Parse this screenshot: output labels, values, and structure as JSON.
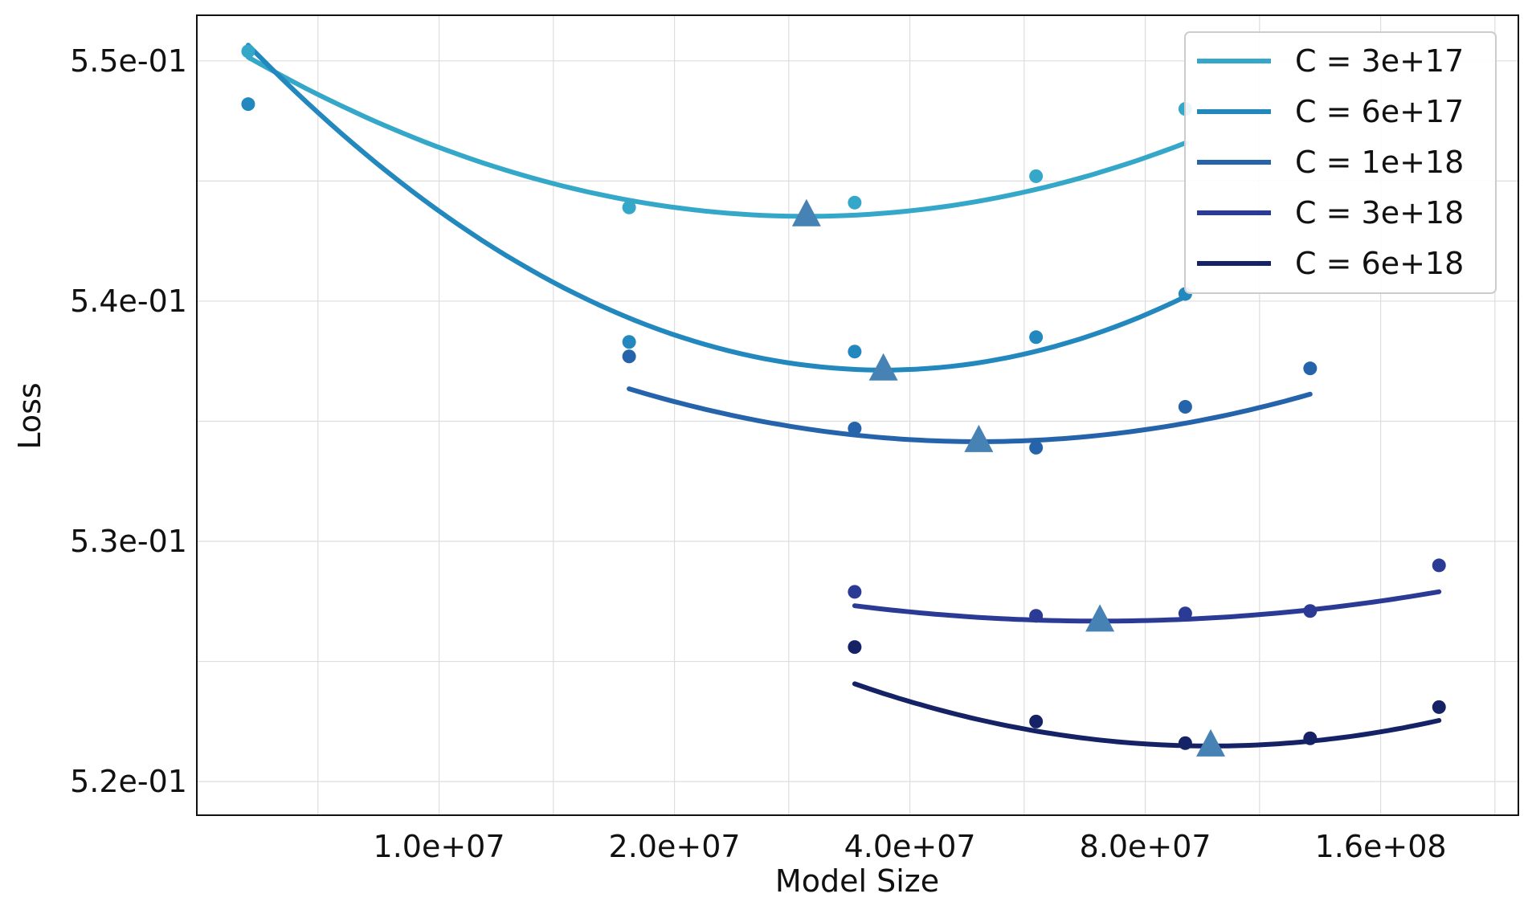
{
  "chart_data": {
    "type": "line",
    "title": "",
    "xlabel": "Model Size",
    "ylabel": "Loss",
    "xscale": "log",
    "xlim": [
      4900000,
      240000000
    ],
    "ylim": [
      0.5186,
      0.5519
    ],
    "grid": true,
    "legend_position": "top-right",
    "x_ticks": [
      {
        "value": 10000000,
        "label": "1.0e+07"
      },
      {
        "value": 20000000,
        "label": "2.0e+07"
      },
      {
        "value": 40000000,
        "label": "4.0e+07"
      },
      {
        "value": 80000000,
        "label": "8.0e+07"
      },
      {
        "value": 160000000,
        "label": "1.6e+08"
      }
    ],
    "x_minor_grid": [
      7000000,
      14000000,
      28000000,
      56000000,
      112000000,
      224000000
    ],
    "y_ticks": [
      {
        "value": 0.55,
        "label": "5.5e-01"
      },
      {
        "value": 0.54,
        "label": "5.4e-01"
      },
      {
        "value": 0.53,
        "label": "5.3e-01"
      },
      {
        "value": 0.52,
        "label": "5.2e-01"
      }
    ],
    "y_minor_grid": [
      0.545,
      0.535,
      0.525
    ],
    "series": [
      {
        "name": "C = 3e+17",
        "color": "#35a7c8",
        "points": [
          [
            5700000,
            0.5504
          ],
          [
            17500000,
            0.5439
          ],
          [
            34000000,
            0.5441
          ],
          [
            58000000,
            0.5452
          ],
          [
            90000000,
            0.548
          ]
        ],
        "fit": [
          5700000,
          90000000,
          0.54353,
          1.3
        ],
        "optimum": [
          29500000,
          0.54355
        ]
      },
      {
        "name": "C = 6e+17",
        "color": "#2288bd",
        "points": [
          [
            5700000,
            0.5482
          ],
          [
            17500000,
            0.5383
          ],
          [
            34000000,
            0.5379
          ],
          [
            58000000,
            0.5385
          ],
          [
            90000000,
            0.5403
          ]
        ],
        "fit": [
          5700000,
          90000000,
          0.53713,
          2.05
        ],
        "optimum": [
          37000000,
          0.53713
        ]
      },
      {
        "name": "C = 1e+18",
        "color": "#2563aa",
        "points": [
          [
            17500000,
            0.5377
          ],
          [
            34000000,
            0.5347
          ],
          [
            58000000,
            0.5339
          ],
          [
            90000000,
            0.5356
          ],
          [
            130000000,
            0.5372
          ]
        ],
        "fit": [
          17500000,
          130000000,
          0.53415,
          1.1
        ],
        "optimum": [
          49000000,
          0.53415
        ]
      },
      {
        "name": "C = 3e+18",
        "color": "#2b3a94",
        "points": [
          [
            34000000,
            0.5279
          ],
          [
            58000000,
            0.5269
          ],
          [
            90000000,
            0.527
          ],
          [
            130000000,
            0.5271
          ],
          [
            190000000,
            0.529
          ]
        ],
        "fit": [
          34000000,
          190000000,
          0.52668,
          0.65
        ],
        "optimum": [
          70000000,
          0.52668
        ]
      },
      {
        "name": "C = 6e+18",
        "color": "#162266",
        "points": [
          [
            34000000,
            0.5256
          ],
          [
            58000000,
            0.5225
          ],
          [
            90000000,
            0.5216
          ],
          [
            130000000,
            0.5218
          ],
          [
            190000000,
            0.5231
          ]
        ],
        "fit": [
          34000000,
          190000000,
          0.52148,
          1.25
        ],
        "optimum": [
          97000000,
          0.52148
        ]
      }
    ],
    "optimum_marker_color": "#4682b4"
  }
}
